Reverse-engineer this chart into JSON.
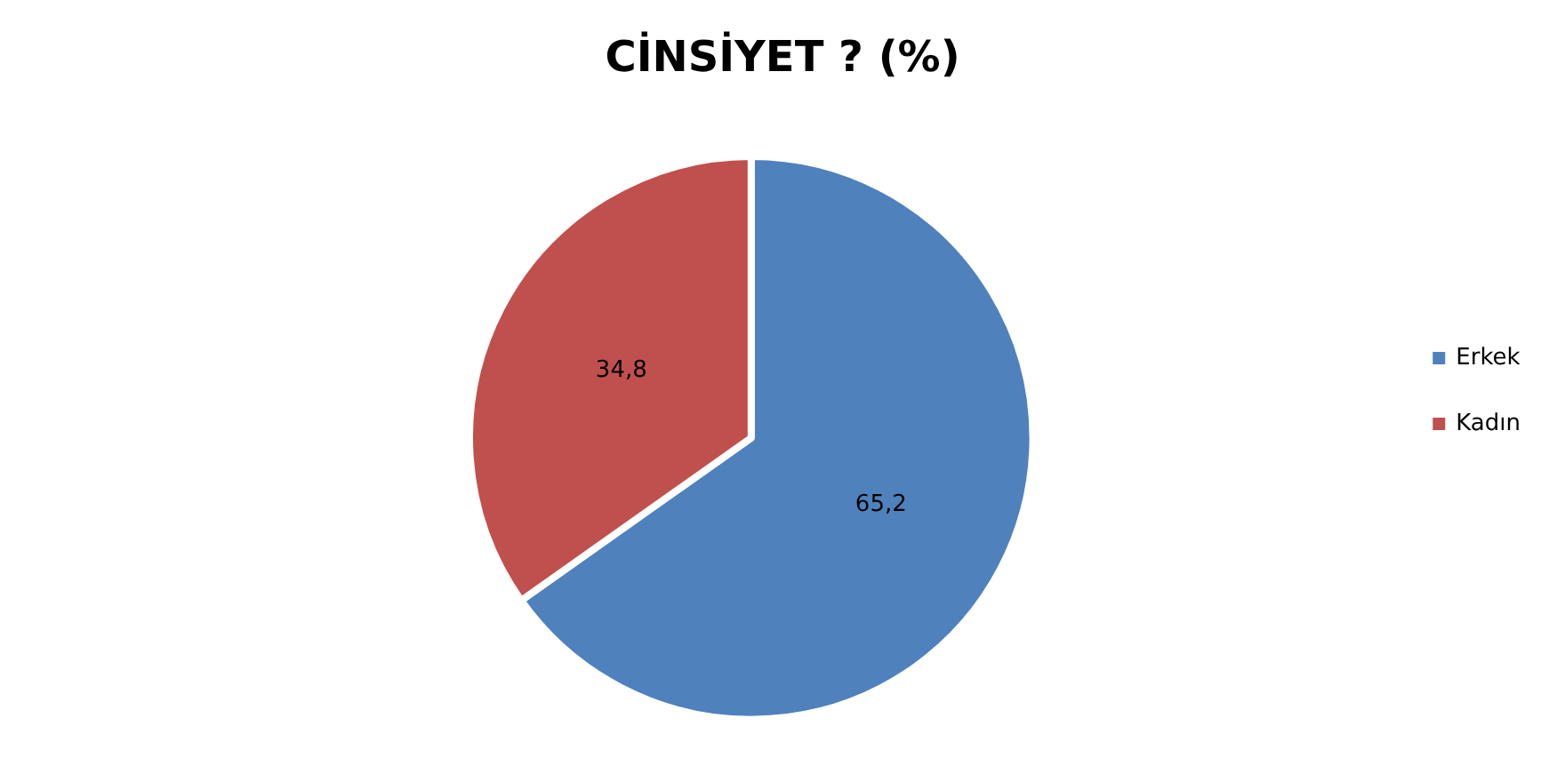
{
  "chart_data": {
    "type": "pie",
    "title": "CİNSİYET ? (%)",
    "categories": [
      "Erkek",
      "Kadın"
    ],
    "values": [
      65.2,
      34.8
    ],
    "colors": [
      "#4f81bd",
      "#c0504d"
    ],
    "value_labels": [
      "65,2",
      "34,8"
    ],
    "legend": "right"
  }
}
